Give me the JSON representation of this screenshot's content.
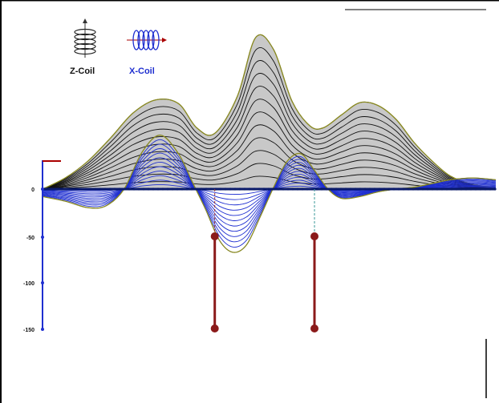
{
  "chart_data": {
    "type": "line",
    "title": "",
    "xlabel": "",
    "ylabel": "",
    "y_ticks": [
      0,
      -50,
      -100,
      -150
    ],
    "ylim": [
      -150,
      165
    ],
    "xlim": [
      0,
      100
    ],
    "grid": false,
    "legend_placement": "top-left",
    "legend": [
      {
        "name": "Z-Coil",
        "color": "#111111",
        "icon": "z-coil-icon"
      },
      {
        "name": "X-Coil",
        "color": "#1f2fd0",
        "icon": "x-coil-icon"
      }
    ],
    "series": [
      {
        "name": "Z-Coil",
        "color": "#111111",
        "fill": "#c8c8c8",
        "envelope_color": "#8a8a1f",
        "x": [
          0,
          5,
          10,
          15,
          20,
          25,
          30,
          34,
          38,
          43,
          47,
          51,
          55,
          59,
          62,
          66,
          70,
          74,
          78,
          82,
          86,
          90,
          95,
          100
        ],
        "y": [
          0,
          12,
          30,
          55,
          82,
          96,
          92,
          66,
          60,
          100,
          163,
          150,
          95,
          68,
          66,
          80,
          93,
          90,
          75,
          50,
          30,
          14,
          5,
          2
        ]
      },
      {
        "name": "X-Coil",
        "color": "#1f2fd0",
        "envelope_color": "#8a8a1f",
        "x": [
          0,
          5,
          10,
          14,
          18,
          22,
          26,
          30,
          33,
          36,
          39,
          42,
          45,
          48,
          51,
          54,
          57,
          60,
          63,
          66,
          70,
          74,
          78,
          82,
          86,
          90,
          95,
          100
        ],
        "y": [
          -8,
          -13,
          -20,
          -18,
          0,
          40,
          58,
          38,
          8,
          -22,
          -55,
          -68,
          -60,
          -30,
          2,
          30,
          38,
          20,
          0,
          -10,
          -8,
          -3,
          0,
          2,
          6,
          10,
          12,
          10
        ]
      }
    ],
    "markers": [
      {
        "x": 38,
        "y_top": -50,
        "y_bottom": -150
      },
      {
        "x": 60,
        "y_top": -50,
        "y_bottom": -150
      }
    ]
  }
}
